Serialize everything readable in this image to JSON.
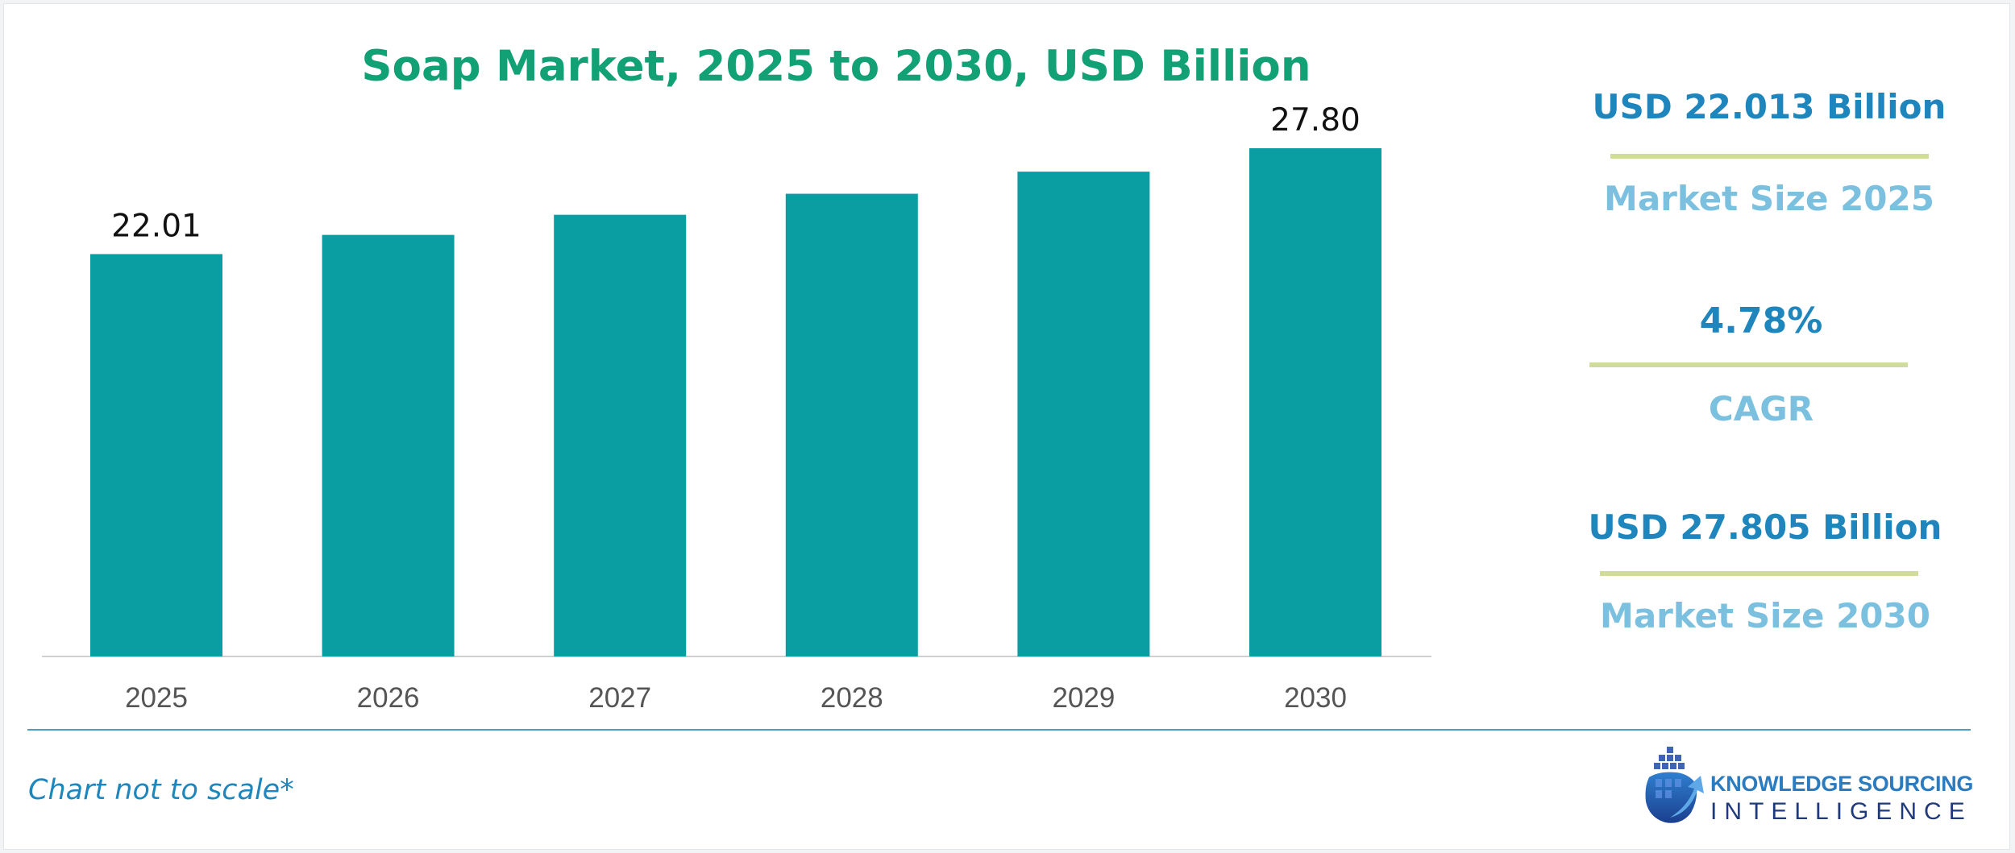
{
  "chart_data": {
    "type": "bar",
    "title": "Soap Market, 2025 to 2030, USD Billion",
    "categories": [
      "2025",
      "2026",
      "2027",
      "2028",
      "2029",
      "2030"
    ],
    "values": [
      22.01,
      23.06,
      24.16,
      25.31,
      26.52,
      27.8
    ],
    "data_labels": [
      "22.01",
      "",
      "",
      "",
      "",
      "27.80"
    ],
    "bar_color": "#0a9ea2",
    "xlabel": "",
    "ylabel": "",
    "ylim": [
      0,
      29.3
    ],
    "grid": false,
    "legend": "none"
  },
  "stats": [
    {
      "value": "USD 22.013 Billion",
      "caption": "Market Size 2025"
    },
    {
      "value": "4.78%",
      "caption": "CAGR"
    },
    {
      "value": "USD 27.805 Billion",
      "caption": "Market Size 2030"
    }
  ],
  "footnote": "Chart not to scale*",
  "logo": {
    "line1": "KNOWLEDGE SOURCING",
    "line2": "INTELLIGENCE"
  },
  "colors": {
    "title": "#12a075",
    "stat_value": "#1e86bc",
    "stat_caption": "#7cc0df",
    "stat_rule": "#cfdc9a",
    "footer_rule": "#4a9fc6"
  }
}
